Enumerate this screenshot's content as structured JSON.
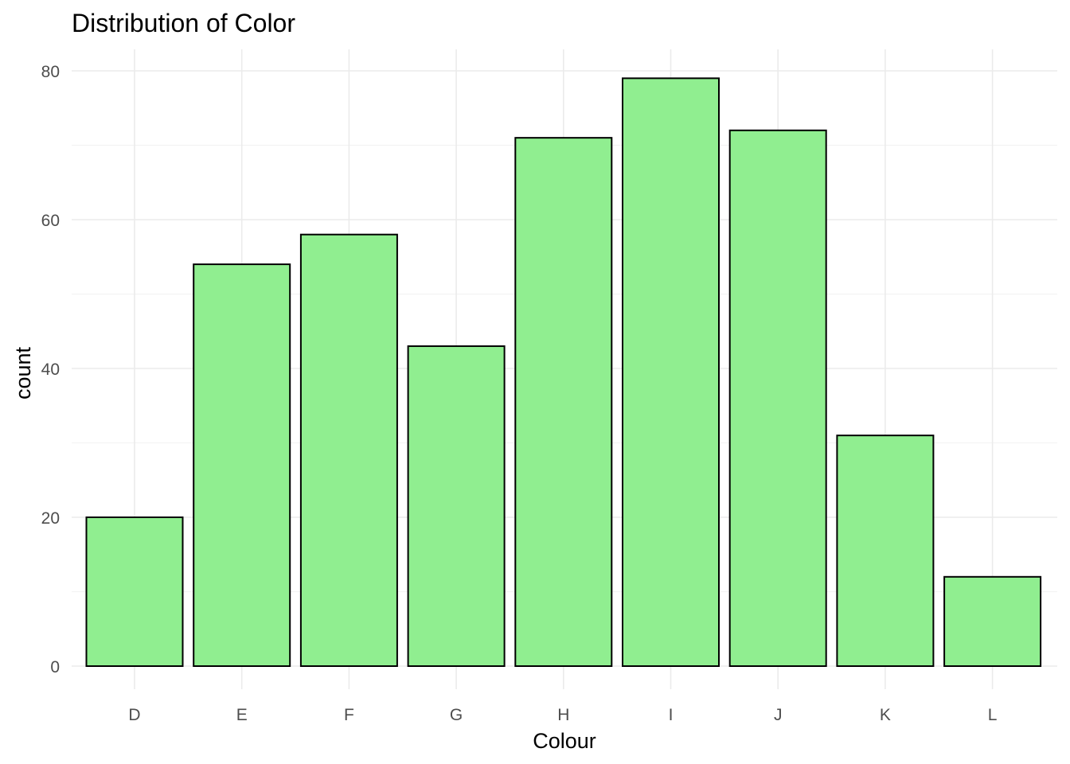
{
  "chart_data": {
    "type": "bar",
    "title": "Distribution of Color",
    "xlabel": "Colour",
    "ylabel": "count",
    "categories": [
      "D",
      "E",
      "F",
      "G",
      "H",
      "I",
      "J",
      "K",
      "L"
    ],
    "values": [
      20,
      54,
      58,
      43,
      71,
      79,
      72,
      31,
      12
    ],
    "ylim": [
      0,
      80
    ],
    "yticks": [
      "0",
      "20",
      "40",
      "60",
      "80"
    ],
    "grid": true,
    "legend": "none",
    "colors": {
      "bar_fill": "#90EE90",
      "bar_stroke": "#000000"
    }
  }
}
